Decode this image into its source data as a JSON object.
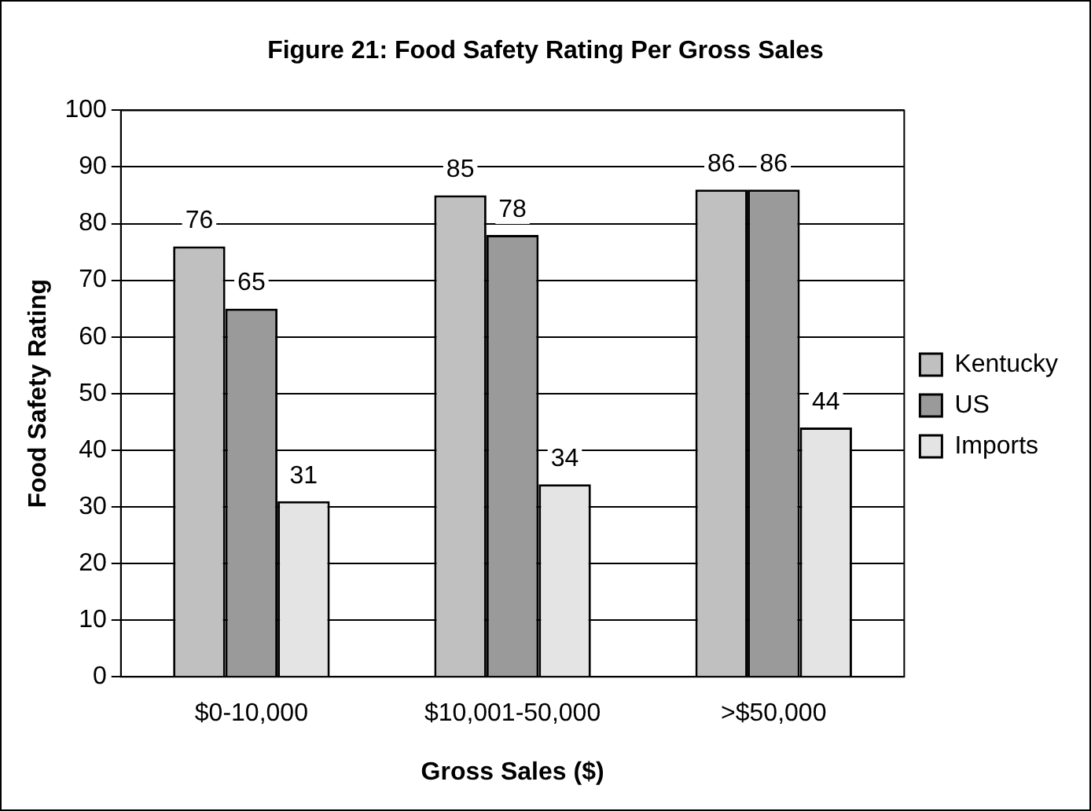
{
  "chart_data": {
    "type": "bar",
    "title": "Figure 21: Food Safety Rating Per Gross Sales",
    "xlabel": "Gross Sales ($)",
    "ylabel": "Food Safety Rating",
    "categories": [
      "$0-10,000",
      "$10,001-50,000",
      ">$50,000"
    ],
    "series": [
      {
        "name": "Kentucky",
        "color": "#c0c0c0",
        "values": [
          76,
          85,
          86
        ]
      },
      {
        "name": "US",
        "color": "#9a9a9a",
        "values": [
          65,
          78,
          86
        ]
      },
      {
        "name": "Imports",
        "color": "#e4e4e4",
        "values": [
          31,
          34,
          44
        ]
      }
    ],
    "ylim": [
      0,
      100
    ],
    "yticks": [
      0,
      10,
      20,
      30,
      40,
      50,
      60,
      70,
      80,
      90,
      100
    ],
    "grid": "y",
    "legend": "right",
    "data_labels": true
  }
}
